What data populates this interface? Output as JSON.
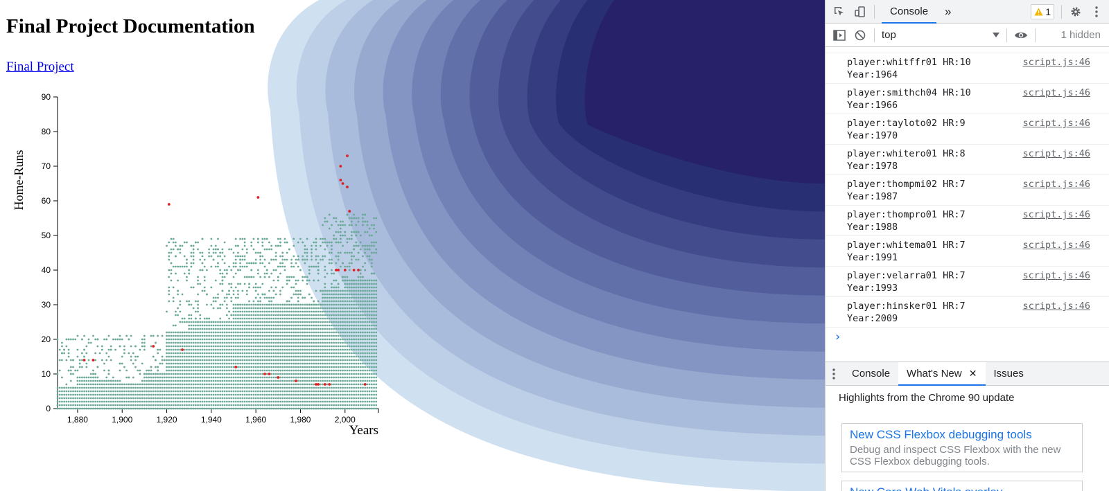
{
  "page": {
    "title": "Final Project Documentation",
    "link_label": "Final Project"
  },
  "chart_data": {
    "type": "scatter",
    "title": "",
    "xlabel": "Years",
    "ylabel": "Home-Runs",
    "xlim": [
      1871,
      2015
    ],
    "ylim": [
      0,
      90
    ],
    "x_ticks": [
      "1,880",
      "1,900",
      "1,920",
      "1,940",
      "1,960",
      "1,980",
      "2,000"
    ],
    "y_ticks": [
      "0",
      "10",
      "20",
      "30",
      "40",
      "50",
      "60",
      "70",
      "80",
      "90"
    ],
    "grid": false,
    "legend": "none",
    "colors": {
      "points": "#6aa898",
      "highlight": "#dd1f1f"
    },
    "series": [
      {
        "values": "dense cloud of player seasons, 1871-2015, mostly 0-45 HR"
      },
      {
        "x": [
          1883,
          1887,
          1914,
          1921,
          1927,
          1951,
          1961,
          1964,
          1966,
          1970,
          1978,
          1987,
          1988,
          1991,
          1993,
          1996,
          1997,
          1998,
          1998,
          1999,
          2000,
          2001,
          2001,
          2002,
          2004,
          2006,
          2009
        ],
        "y": [
          14,
          14,
          18,
          59,
          17,
          12,
          61,
          10,
          10,
          9,
          8,
          7,
          7,
          7,
          7,
          40,
          40,
          70,
          66,
          65,
          40,
          73,
          64,
          57,
          40,
          40,
          7
        ]
      }
    ]
  },
  "devtools": {
    "main_tab": "Console",
    "more_tabs_glyph": "»",
    "warning_count": "1",
    "context": "top",
    "hidden_label": "1 hidden",
    "messages": [
      {
        "line1": "player:whitffr01 HR:10",
        "line2": "Year:1964",
        "source": "script.js:46"
      },
      {
        "line1": "player:smithch04 HR:10",
        "line2": "Year:1966",
        "source": "script.js:46"
      },
      {
        "line1": "player:tayloto02 HR:9",
        "line2": "Year:1970",
        "source": "script.js:46"
      },
      {
        "line1": "player:whitero01 HR:8",
        "line2": "Year:1978",
        "source": "script.js:46"
      },
      {
        "line1": "player:thompmi02 HR:7",
        "line2": "Year:1987",
        "source": "script.js:46"
      },
      {
        "line1": "player:thompro01 HR:7",
        "line2": "Year:1988",
        "source": "script.js:46"
      },
      {
        "line1": "player:whitema01 HR:7",
        "line2": "Year:1991",
        "source": "script.js:46"
      },
      {
        "line1": "player:velarra01 HR:7",
        "line2": "Year:1993",
        "source": "script.js:46"
      },
      {
        "line1": "player:hinsker01 HR:7",
        "line2": "Year:2009",
        "source": "script.js:46"
      }
    ],
    "drawer_tabs": [
      "Console",
      "What's New",
      "Issues"
    ],
    "whats_new_headline": "Highlights from the Chrome 90 update",
    "cards": [
      {
        "title": "New CSS Flexbox debugging tools",
        "desc": "Debug and inspect CSS Flexbox with the new CSS Flexbox debugging tools."
      },
      {
        "title": "New Core Web Vitals overlay",
        "desc": ""
      }
    ]
  }
}
